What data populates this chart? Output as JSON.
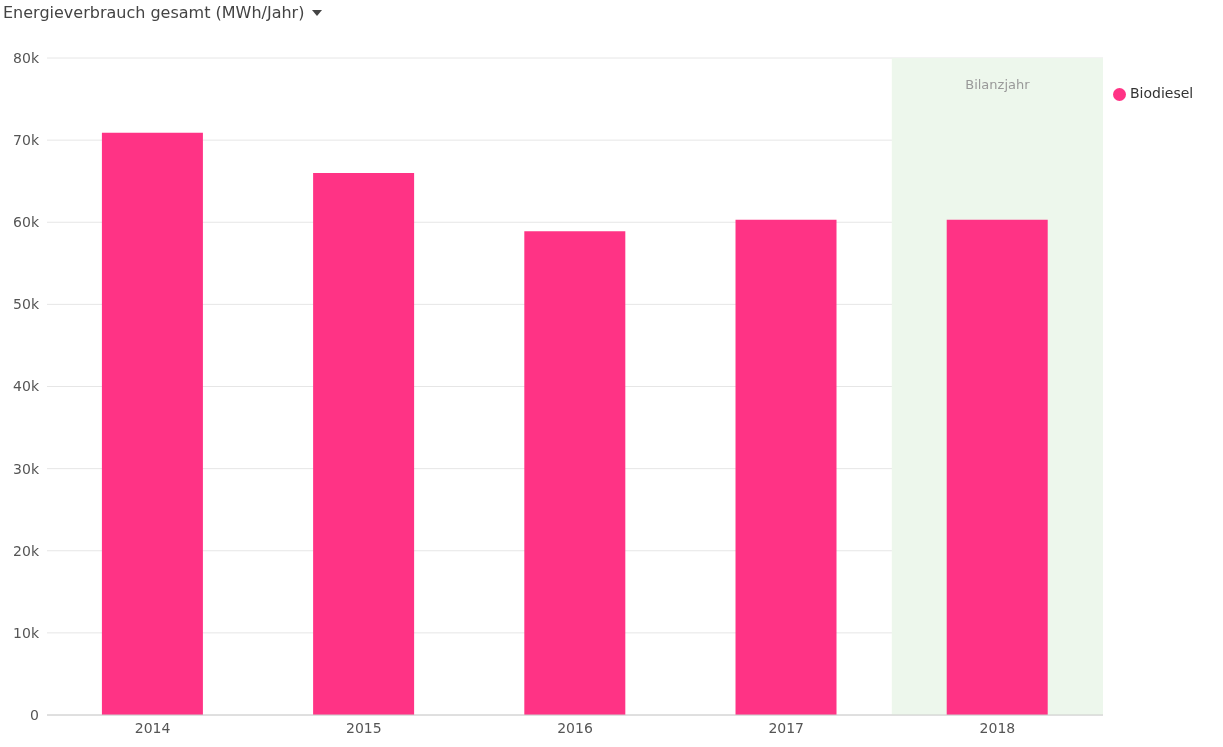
{
  "chart_data": {
    "type": "bar",
    "title": "Energieverbrauch gesamt (MWh/Jahr)",
    "categories": [
      "2014",
      "2015",
      "2016",
      "2017",
      "2018"
    ],
    "series": [
      {
        "name": "Biodiesel",
        "color": "#ff3385",
        "values": [
          70900,
          66000,
          58900,
          60300,
          60300
        ]
      }
    ],
    "ylim": [
      0,
      80000
    ],
    "yticks": [
      {
        "value": 0,
        "label": "0"
      },
      {
        "value": 10000,
        "label": "10k"
      },
      {
        "value": 20000,
        "label": "20k"
      },
      {
        "value": 30000,
        "label": "30k"
      },
      {
        "value": 40000,
        "label": "40k"
      },
      {
        "value": 50000,
        "label": "50k"
      },
      {
        "value": 60000,
        "label": "60k"
      },
      {
        "value": 70000,
        "label": "70k"
      },
      {
        "value": 80000,
        "label": "80k"
      }
    ],
    "bands": [
      {
        "axis": "x",
        "from": "2018",
        "to": "2018",
        "label": "Bilanzjahr",
        "color": "#edf7ec"
      }
    ],
    "grid": "y",
    "legend": "top right"
  }
}
